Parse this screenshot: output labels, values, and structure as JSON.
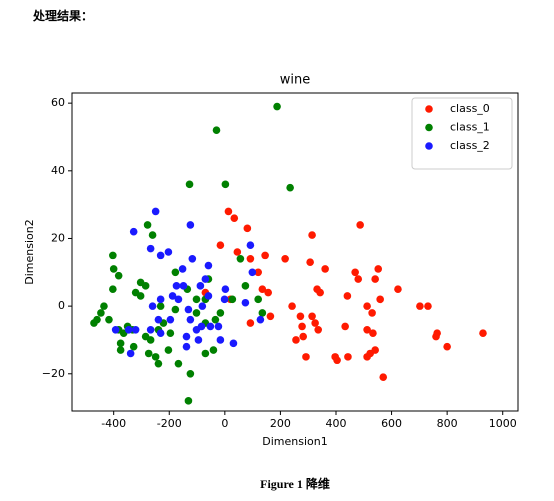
{
  "heading": "处理结果：",
  "caption": "Figure 1 降维",
  "chart_data": {
    "type": "scatter",
    "title": "wine",
    "x_label": "Dimension1",
    "y_label": "Dimension2",
    "xlim": [
      -550,
      1055
    ],
    "ylim": [
      -31,
      63
    ],
    "xticks": [
      -400,
      -200,
      0,
      200,
      400,
      600,
      800,
      1000
    ],
    "yticks": [
      {
        "value": -20,
        "label": "−20"
      },
      0,
      20,
      40,
      60
    ],
    "grid": false,
    "legend": "upper right",
    "series": [
      {
        "name": "class_0",
        "color": "#ff1a00",
        "x": [
          13,
          34,
          -16,
          81,
          45,
          92,
          145,
          120,
          217,
          314,
          307,
          361,
          469,
          480,
          332,
          343,
          441,
          541,
          552,
          487,
          623,
          559,
          242,
          272,
          314,
          325,
          278,
          336,
          282,
          256,
          292,
          433,
          397,
          404,
          443,
          512,
          530,
          512,
          533,
          523,
          512,
          541,
          570,
          702,
          731,
          764,
          760,
          800,
          929,
          164,
          135,
          156,
          92,
          -70,
          20
        ],
        "y": [
          28,
          26,
          18,
          23,
          16,
          14,
          15,
          10,
          14,
          21,
          13,
          11,
          10,
          8,
          5,
          4,
          3,
          8,
          11,
          24,
          5,
          2,
          0,
          -3,
          -3,
          -5,
          -6,
          -7,
          -9,
          -10,
          -15,
          -6,
          -15,
          -16,
          -15,
          0,
          -2,
          -7,
          -8,
          -14,
          -15,
          -13,
          -21,
          0,
          0,
          -8,
          -9,
          -12,
          -8,
          -3,
          5,
          4,
          -5,
          4,
          2
        ]
      },
      {
        "name": "class_1",
        "color": "#008000",
        "x": [
          188,
          -30,
          -127,
          2,
          235,
          -278,
          -260,
          -403,
          -400,
          -382,
          -303,
          -285,
          -321,
          -303,
          -403,
          -435,
          -446,
          -460,
          -471,
          -417,
          -382,
          -364,
          -350,
          -332,
          -375,
          -375,
          -328,
          -267,
          -285,
          -239,
          -221,
          -274,
          -249,
          -239,
          -196,
          -167,
          -124,
          -131,
          -178,
          -135,
          -102,
          -59,
          -70,
          -70,
          -34,
          -41,
          -70,
          -16,
          27,
          56,
          74,
          120,
          135,
          -203,
          -102,
          -178,
          -231
        ],
        "y": [
          59,
          52,
          36,
          36,
          35,
          24,
          21,
          15,
          11,
          9,
          7,
          6,
          4,
          3,
          5,
          0,
          -2,
          -4,
          -5,
          -4,
          -7,
          -8,
          -6,
          -7,
          -11,
          -13,
          -12,
          -10,
          -9,
          -7,
          -5,
          -14,
          -15,
          -17,
          -8,
          -17,
          -20,
          -28,
          10,
          5,
          2,
          8,
          2,
          -5,
          -4,
          -13,
          -14,
          -2,
          2,
          14,
          6,
          2,
          -2,
          -13,
          -2,
          -1,
          0
        ]
      },
      {
        "name": "class_2",
        "color": "#1a1aff",
        "x": [
          -249,
          -328,
          -267,
          -231,
          -203,
          -124,
          -117,
          -152,
          -149,
          -188,
          -231,
          -260,
          -239,
          -196,
          -167,
          -131,
          -124,
          -102,
          -138,
          -138,
          -95,
          -84,
          -52,
          -23,
          -81,
          -59,
          -70,
          -59,
          2,
          -1,
          31,
          -16,
          74,
          92,
          99,
          128,
          -346,
          -321,
          -339,
          -393,
          -267,
          -231,
          -88,
          -174
        ],
        "y": [
          28,
          22,
          17,
          15,
          16,
          24,
          14,
          11,
          6,
          3,
          2,
          0,
          -4,
          -4,
          2,
          -1,
          -4,
          -7,
          -9,
          -12,
          -10,
          -6,
          -6,
          -6,
          0,
          3,
          8,
          12,
          5,
          2,
          -11,
          -10,
          1,
          18,
          10,
          -4,
          -7,
          -7,
          -14,
          -7,
          -7,
          -8,
          6,
          6
        ]
      }
    ]
  }
}
